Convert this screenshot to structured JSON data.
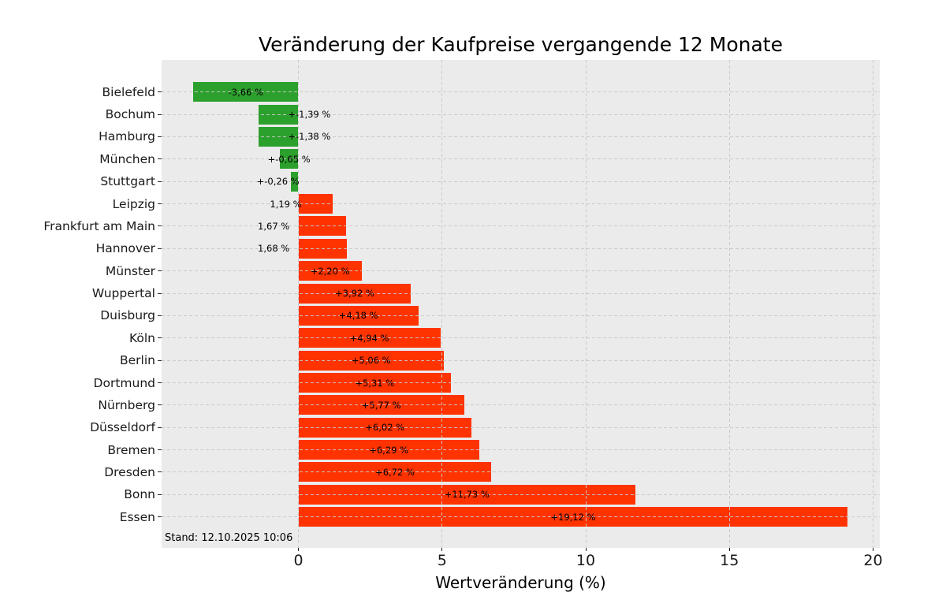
{
  "chart_data": {
    "type": "bar",
    "orientation": "horizontal",
    "title": "Veränderung der Kaufpreise vergangende 12 Monate",
    "xlabel": "Wertveränderung (%)",
    "ylabel": "",
    "xlim": [
      -4.76,
      20.23
    ],
    "xticks": [
      0,
      5,
      10,
      15,
      20
    ],
    "xtick_labels": [
      "0",
      "5",
      "10",
      "15",
      "20"
    ],
    "grid": true,
    "grid_style": "dashed",
    "legend": false,
    "plot_background": "#ebebeb",
    "bar_color_negative": "#2ca02c",
    "bar_color_positive": "#ff3300",
    "annotation": "Stand: 12.10.2025 10:06",
    "categories": [
      "Bielefeld",
      "Bochum",
      "Hamburg",
      "München",
      "Stuttgart",
      "Leipzig",
      "Frankfurt am Main",
      "Hannover",
      "Münster",
      "Wuppertal",
      "Duisburg",
      "Köln",
      "Berlin",
      "Dortmund",
      "Nürnberg",
      "Düsseldorf",
      "Bremen",
      "Dresden",
      "Bonn",
      "Essen"
    ],
    "values": [
      -3.66,
      -1.39,
      -1.38,
      -0.65,
      -0.26,
      1.19,
      1.67,
      1.68,
      2.2,
      3.92,
      4.18,
      4.94,
      5.06,
      5.31,
      5.77,
      6.02,
      6.29,
      6.72,
      11.73,
      19.12
    ],
    "bar_labels": [
      "-3,66 %",
      "+-1,39 %",
      "+-1,38 %",
      "+-0,65 %",
      "+-0,26 %",
      "1,19 %",
      "1,67 %",
      "1,68 %",
      "+2,20 %",
      "+3,92 %",
      "+4,18 %",
      "+4,94 %",
      "+5,06 %",
      "+5,31 %",
      "+5,77 %",
      "+6,02 %",
      "+6,29 %",
      "+6,72 %",
      "+11,73 %",
      "+19,12 %"
    ]
  }
}
